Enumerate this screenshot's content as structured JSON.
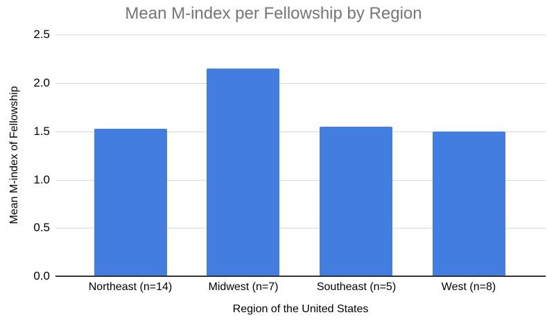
{
  "chart_data": {
    "type": "bar",
    "title": "Mean M-index per Fellowship by Region",
    "xlabel": "Region of the United States",
    "ylabel": "Mean M-index of Fellowship",
    "categories": [
      "Northeast (n=14)",
      "Midwest (n=7)",
      "Southeast (n=5)",
      "West (n=8)"
    ],
    "values": [
      1.53,
      2.15,
      1.55,
      1.5
    ],
    "ylim": [
      0,
      2.5
    ],
    "ytick_step": 0.5,
    "yticks": [
      "0.0",
      "0.5",
      "1.0",
      "1.5",
      "2.0",
      "2.5"
    ],
    "grid": true,
    "legend": "none",
    "colors": {
      "bar": "#437de0",
      "gridline": "#d9d9d9",
      "axis_line": "#333333",
      "title": "#757575",
      "tick_label": "#000000",
      "background": "#ffffff"
    }
  }
}
